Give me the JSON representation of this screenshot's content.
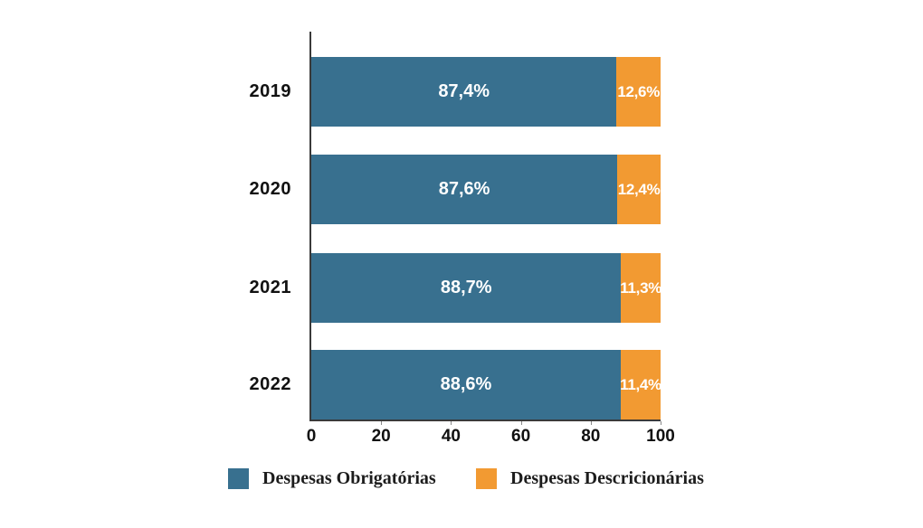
{
  "chart_data": {
    "type": "bar",
    "orientation": "horizontal-stacked",
    "title": "",
    "xlabel": "",
    "ylabel": "",
    "grid": false,
    "legend_position": "bottom",
    "xlim": [
      0,
      100
    ],
    "xticks": [
      "0",
      "20",
      "40",
      "60",
      "80",
      "100"
    ],
    "categories": [
      "2019",
      "2020",
      "2021",
      "2022"
    ],
    "series": [
      {
        "name": "Despesas Obrigatórias",
        "color": "#38708f",
        "values": [
          87.4,
          87.6,
          88.7,
          88.6
        ],
        "labels": [
          "87,4%",
          "87,6%",
          "88,7%",
          "88,6%"
        ]
      },
      {
        "name": "Despesas Descricionárias",
        "color": "#f29a32",
        "values": [
          12.6,
          12.4,
          11.3,
          11.4
        ],
        "labels": [
          "12,6%",
          "12,4%",
          "11,3%",
          "11,4%"
        ]
      }
    ]
  },
  "legend": {
    "items": [
      {
        "label": "Despesas Obrigatórias",
        "color": "#38708f"
      },
      {
        "label": "Despesas Descricionárias",
        "color": "#f29a32"
      }
    ]
  },
  "colors": {
    "axis_line": "#3a3a3a",
    "label_text": "#111111",
    "bar_label_text": "#ffffff"
  }
}
